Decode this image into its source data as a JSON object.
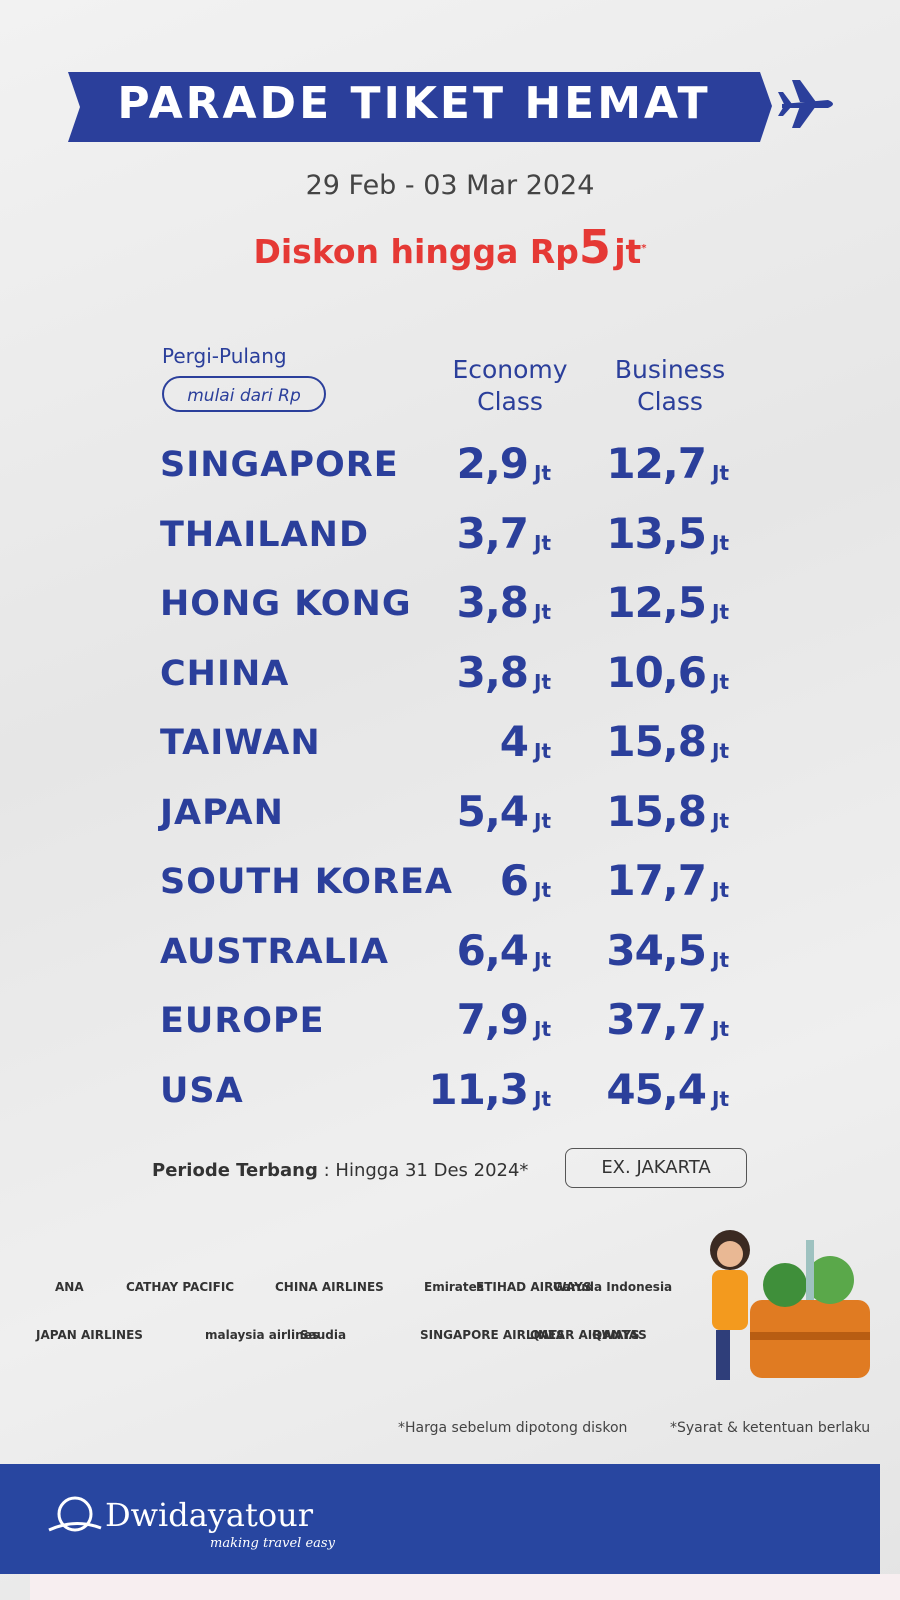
{
  "header": {
    "title": "PARADE TIKET HEMAT",
    "dates": "29 Feb - 03 Mar 2024",
    "discount": {
      "prefix": "Diskon hingga Rp",
      "amount": "5",
      "unit": "jt",
      "mark": "*"
    }
  },
  "table": {
    "trip_type": "Pergi-Pulang",
    "price_note": "mulai dari Rp",
    "columns": [
      "Economy Class",
      "Business Class"
    ],
    "unit": "Jt",
    "rows": [
      [
        "SINGAPORE",
        "2,9",
        "12,7"
      ],
      [
        "THAILAND",
        "3,7",
        "13,5"
      ],
      [
        "HONG KONG",
        "3,8",
        "12,5"
      ],
      [
        "CHINA",
        "3,8",
        "10,6"
      ],
      [
        "TAIWAN",
        "4",
        "15,8"
      ],
      [
        "JAPAN",
        "5,4",
        "15,8"
      ],
      [
        "SOUTH KOREA",
        "6",
        "17,7"
      ],
      [
        "AUSTRALIA",
        "6,4",
        "34,5"
      ],
      [
        "EUROPE",
        "7,9",
        "37,7"
      ],
      [
        "USA",
        "11,3",
        "45,4"
      ]
    ]
  },
  "period": {
    "label": "Periode Terbang",
    "text": ": Hingga 31 Des 2024*",
    "origin": "EX. JAKARTA"
  },
  "airlines": [
    [
      "ANA",
      "CATHAY PACIFIC",
      "CHINA AIRLINES",
      "Emirates",
      "ETIHAD AIRWAYS",
      "Garuda Indonesia"
    ],
    [
      "JAPAN AIRLINES",
      "malaysia airlines",
      "Saudia",
      "SINGAPORE AIRLINES",
      "QATAR AIRWAYS",
      "QANTAS"
    ]
  ],
  "footnotes": [
    "*Harga sebelum dipotong diskon",
    "*Syarat & ketentuan berlaku"
  ],
  "brand": {
    "name": "Dwidayatour",
    "tagline": "making travel easy"
  }
}
